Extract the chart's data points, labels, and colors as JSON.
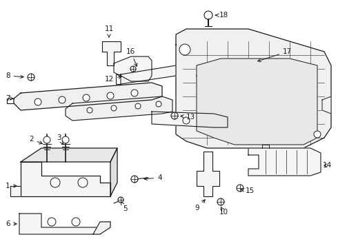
{
  "bg_color": "#ffffff",
  "fig_width": 4.9,
  "fig_height": 3.6,
  "dpi": 100,
  "line_color": "#1a1a1a",
  "label_fontsize": 7.5,
  "label_color": "#000000",
  "parts": [
    {
      "id": "1"
    },
    {
      "id": "2"
    },
    {
      "id": "3"
    },
    {
      "id": "4"
    },
    {
      "id": "5"
    },
    {
      "id": "6"
    },
    {
      "id": "7"
    },
    {
      "id": "8"
    },
    {
      "id": "9"
    },
    {
      "id": "10"
    },
    {
      "id": "11"
    },
    {
      "id": "12"
    },
    {
      "id": "13"
    },
    {
      "id": "14"
    },
    {
      "id": "15"
    },
    {
      "id": "16"
    },
    {
      "id": "17"
    },
    {
      "id": "18"
    }
  ]
}
